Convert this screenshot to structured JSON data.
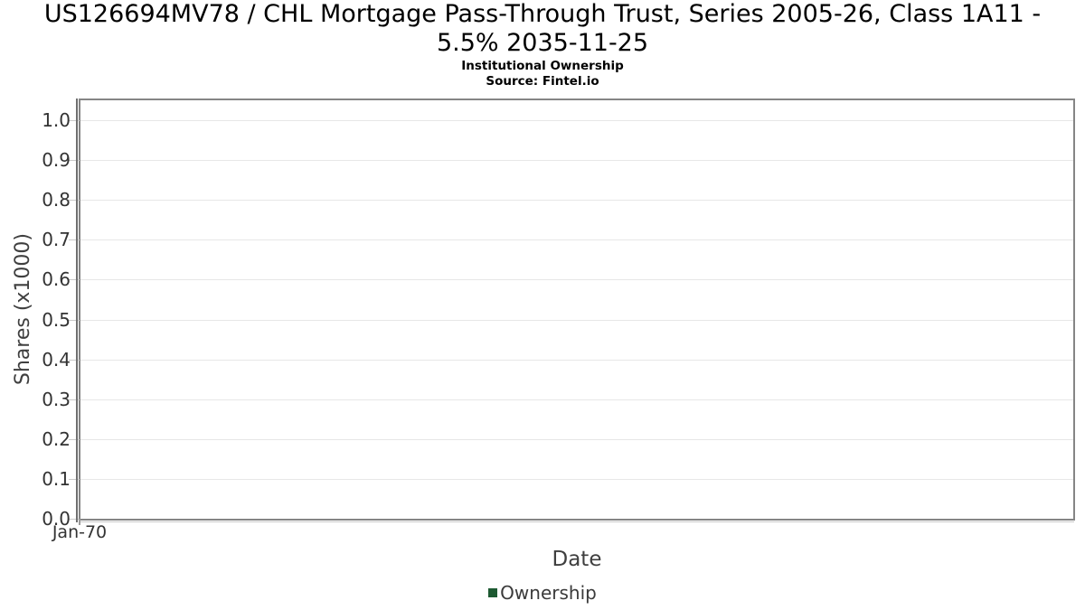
{
  "title": {
    "line1": "US126694MV78 / CHL Mortgage Pass-Through Trust, Series 2005-26, Class 1A11 -",
    "line2": "5.5% 2035-11-25",
    "subtitle": "Institutional Ownership",
    "source": "Source: Fintel.io"
  },
  "axes": {
    "x_label": "Date",
    "y_label": "Shares (x1000)",
    "x_tick_labels": [
      "Jan-70"
    ],
    "y_tick_labels": [
      "0.0",
      "0.1",
      "0.2",
      "0.3",
      "0.4",
      "0.5",
      "0.6",
      "0.7",
      "0.8",
      "0.9",
      "1.0"
    ]
  },
  "legend": {
    "items": [
      {
        "label": "Ownership",
        "color": "#1d5a32"
      }
    ]
  },
  "chart_data": {
    "type": "line",
    "title": "US126694MV78 / CHL Mortgage Pass-Through Trust, Series 2005-26, Class 1A11 - 5.5% 2035-11-25",
    "subtitle": "Institutional Ownership",
    "source": "Source: Fintel.io",
    "xlabel": "Date",
    "ylabel": "Shares (x1000)",
    "x_ticks": [
      "Jan-70"
    ],
    "y_tick_values": [
      0,
      0.1,
      0.2,
      0.3,
      0.4,
      0.5,
      0.6,
      0.7,
      0.8,
      0.9,
      1.0
    ],
    "y_tick_labels": [
      "0.0",
      "0.1",
      "0.2",
      "0.3",
      "0.4",
      "0.5",
      "0.6",
      "0.7",
      "0.8",
      "0.9",
      "1.0"
    ],
    "ylim": [
      0,
      1.05
    ],
    "grid": "horizontal",
    "legend_position": "bottom-center",
    "series": [
      {
        "name": "Ownership",
        "color": "#1d5a32",
        "x": [],
        "values": []
      }
    ]
  },
  "colors": {
    "title_text": "#000000",
    "tick_label": "#333333",
    "axis_label": "#3f3f3f",
    "grid_line": "#e7e7e7",
    "plot_border": "#858585",
    "y_axis_line": "#6f6f6f",
    "tick_mark": "#c9c9c9",
    "legend_swatch": "#1d5a32",
    "background": "#ffffff"
  }
}
